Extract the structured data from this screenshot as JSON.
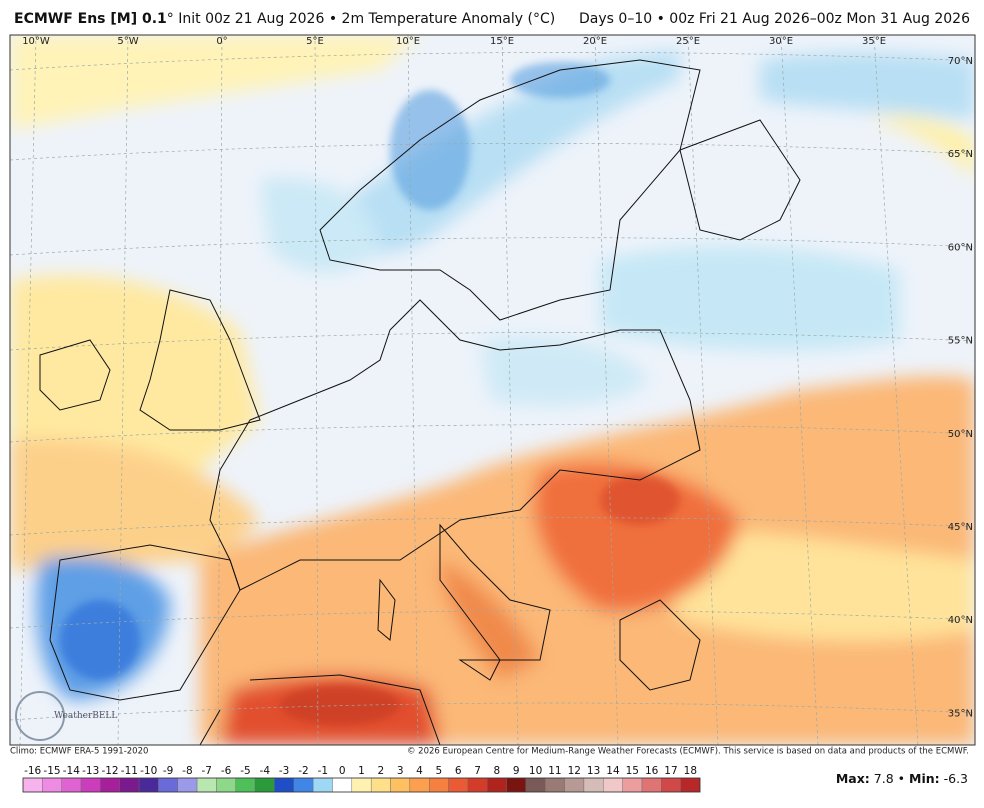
{
  "header": {
    "title_bold": "ECMWF Ens [M] 0.1",
    "title_rest": "° Init 00z 21 Aug 2026 • 2m Temperature Anomaly (°C)",
    "period": "Days 0–10 • 00z Fri 21 Aug 2026–00z Mon 31 Aug 2026"
  },
  "map": {
    "lon_labels": [
      "10°W",
      "5°W",
      "0°",
      "5°E",
      "10°E",
      "15°E",
      "20°E",
      "25°E",
      "30°E",
      "35°E"
    ],
    "lat_labels": [
      "70°N",
      "65°N",
      "60°N",
      "55°N",
      "50°N",
      "45°N",
      "40°N",
      "35°N"
    ],
    "logo": "WeatherBELL"
  },
  "footer": {
    "climo": "Climo: ECMWF ERA-5 1991-2020",
    "copyright": "© 2026 European Centre for Medium-Range Weather Forecasts (ECMWF). This service is based on data and products of the ECMWF."
  },
  "colorbar": {
    "ticks": [
      -16,
      -15,
      -14,
      -13,
      -12,
      -11,
      -10,
      -9,
      -8,
      -7,
      -6,
      -5,
      -4,
      -3,
      -2,
      -1,
      0,
      1,
      2,
      3,
      4,
      5,
      6,
      7,
      8,
      9,
      10,
      11,
      12,
      13,
      14,
      15,
      16,
      17,
      18
    ],
    "colors": [
      "#f6b3ee",
      "#ee8ce3",
      "#e063d3",
      "#cc3dbd",
      "#a81f9c",
      "#7a1a8c",
      "#4a2a9a",
      "#6a6ad8",
      "#9a9ae8",
      "#b8e8b0",
      "#8ed88a",
      "#4fbf5a",
      "#2a9a3a",
      "#1f4fc8",
      "#3f86e6",
      "#9fd8f4",
      "#ffffff",
      "#fff2b0",
      "#ffe08a",
      "#ffc062",
      "#fca050",
      "#f58040",
      "#ea5a34",
      "#d43c2a",
      "#b0241e",
      "#7a1410",
      "#7a5a56",
      "#9a7a74",
      "#b89a94",
      "#d6bcb6",
      "#f0c8c8",
      "#ec9e9e",
      "#e07474",
      "#d04848",
      "#b82828"
    ]
  },
  "stats": {
    "max_label": "Max:",
    "max": 7.8,
    "separator": "•",
    "min_label": "Min:",
    "min": -6.3
  }
}
